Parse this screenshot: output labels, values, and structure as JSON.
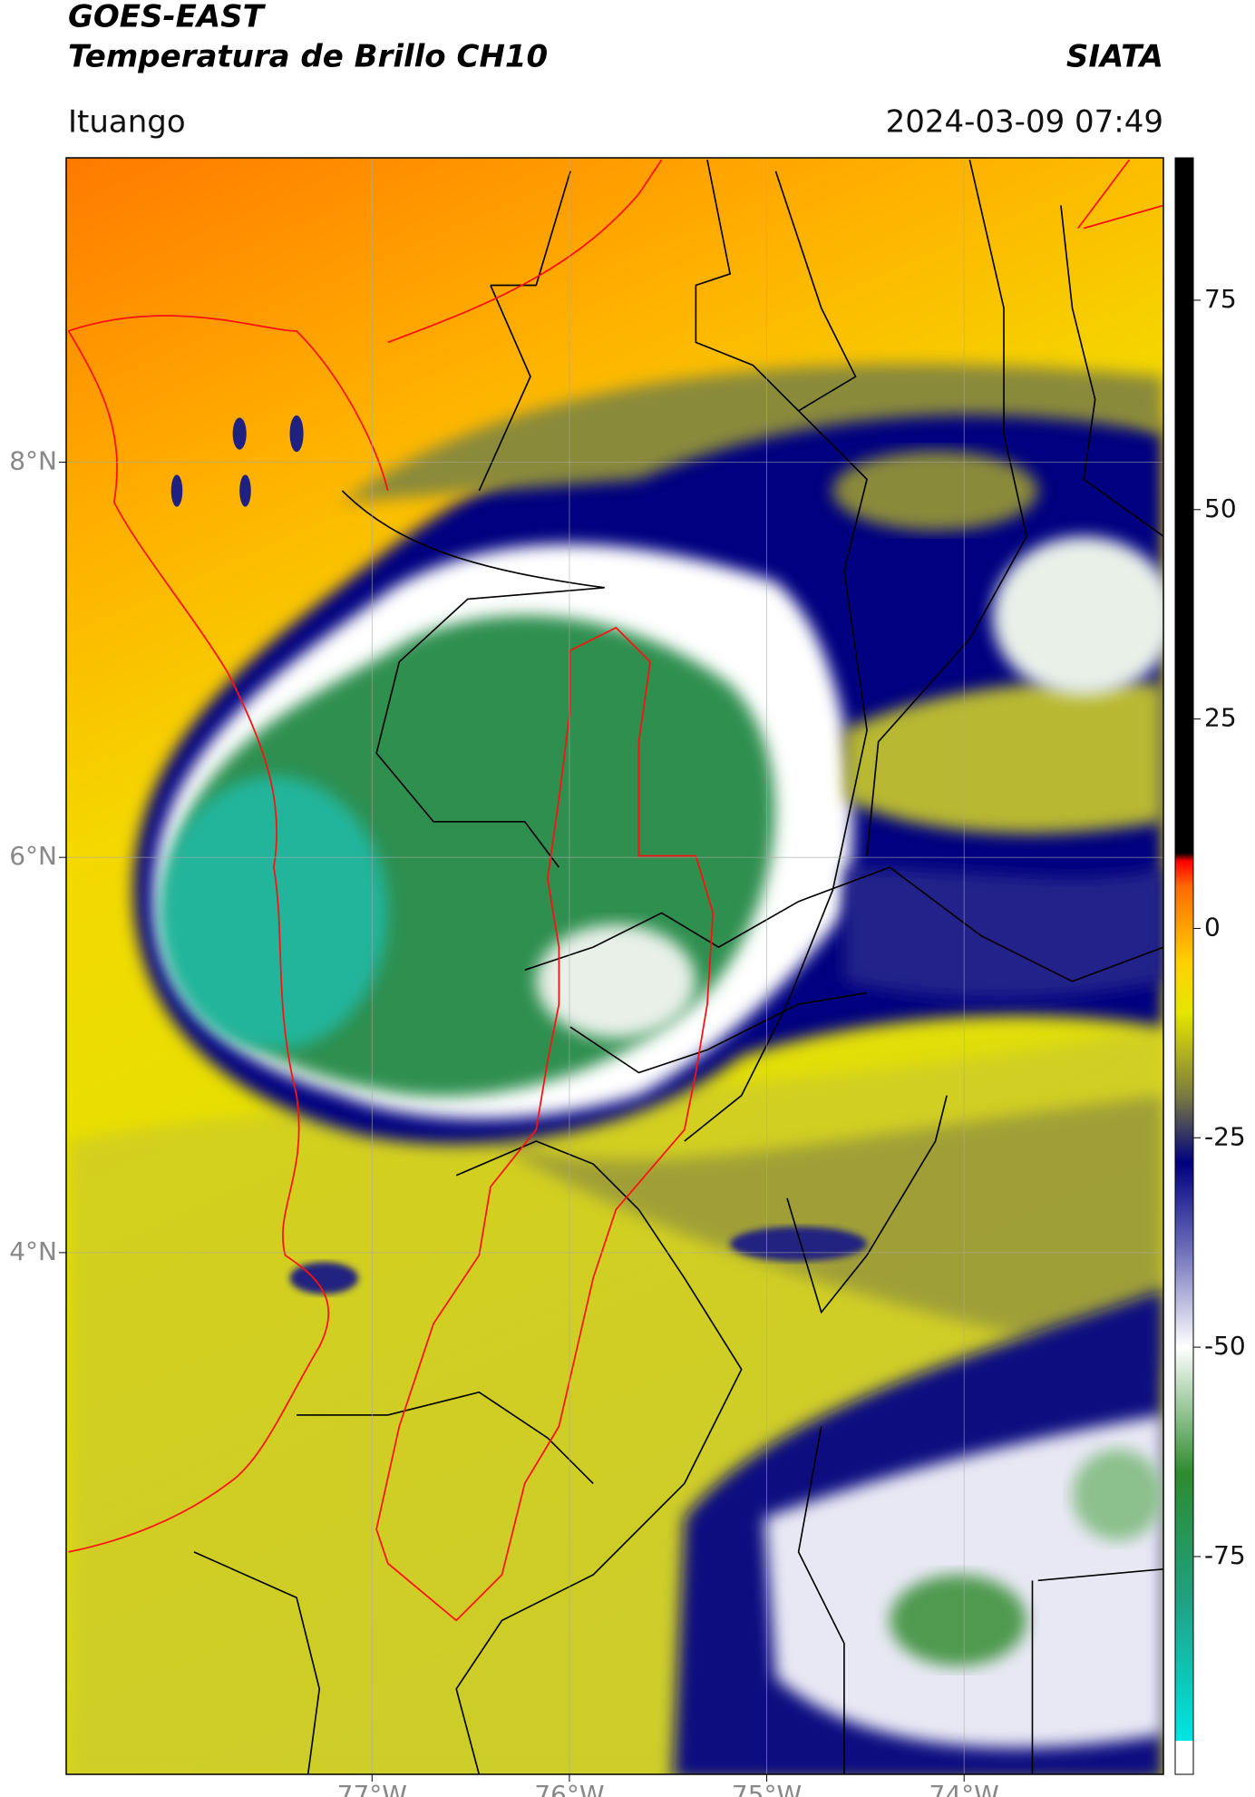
{
  "header": {
    "title": "GOES-EAST",
    "subtitle": "Temperatura de Brillo CH10",
    "brand": "SIATA",
    "region": "Ituango",
    "datetime": "2024-03-09 07:49"
  },
  "map": {
    "lonlim": [
      -78.55,
      -72.99
    ],
    "latlim": [
      1.36,
      9.54
    ],
    "lonticks": [
      {
        "value": -77,
        "label": "77°W"
      },
      {
        "value": -76,
        "label": "76°W"
      },
      {
        "value": -75,
        "label": "75°W"
      },
      {
        "value": -74,
        "label": "74°W"
      }
    ],
    "latticks": [
      {
        "value": 8,
        "label": "8°N"
      },
      {
        "value": 6,
        "label": "6°N"
      },
      {
        "value": 4,
        "label": "4°N"
      }
    ],
    "grid": true
  },
  "colorbar": {
    "clim": [
      -101,
      92
    ],
    "ticks": [
      75,
      50,
      25,
      0,
      -25,
      -50,
      -75
    ],
    "stops": [
      [
        -101,
        "#ffffff"
      ],
      [
        -97,
        "#ffffff"
      ],
      [
        -97,
        "#00e5e5"
      ],
      [
        -80,
        "#20a080"
      ],
      [
        -65,
        "#2e8b2e"
      ],
      [
        -50,
        "#ffffff"
      ],
      [
        -38,
        "#6a6ab8"
      ],
      [
        -28,
        "#000080"
      ],
      [
        -20,
        "#7a7a40"
      ],
      [
        -10,
        "#e6e600"
      ],
      [
        -4,
        "#ffd000"
      ],
      [
        5,
        "#ff6a00"
      ],
      [
        8,
        "#ff0000"
      ],
      [
        9,
        "#000000"
      ],
      [
        92,
        "#000000"
      ]
    ]
  }
}
